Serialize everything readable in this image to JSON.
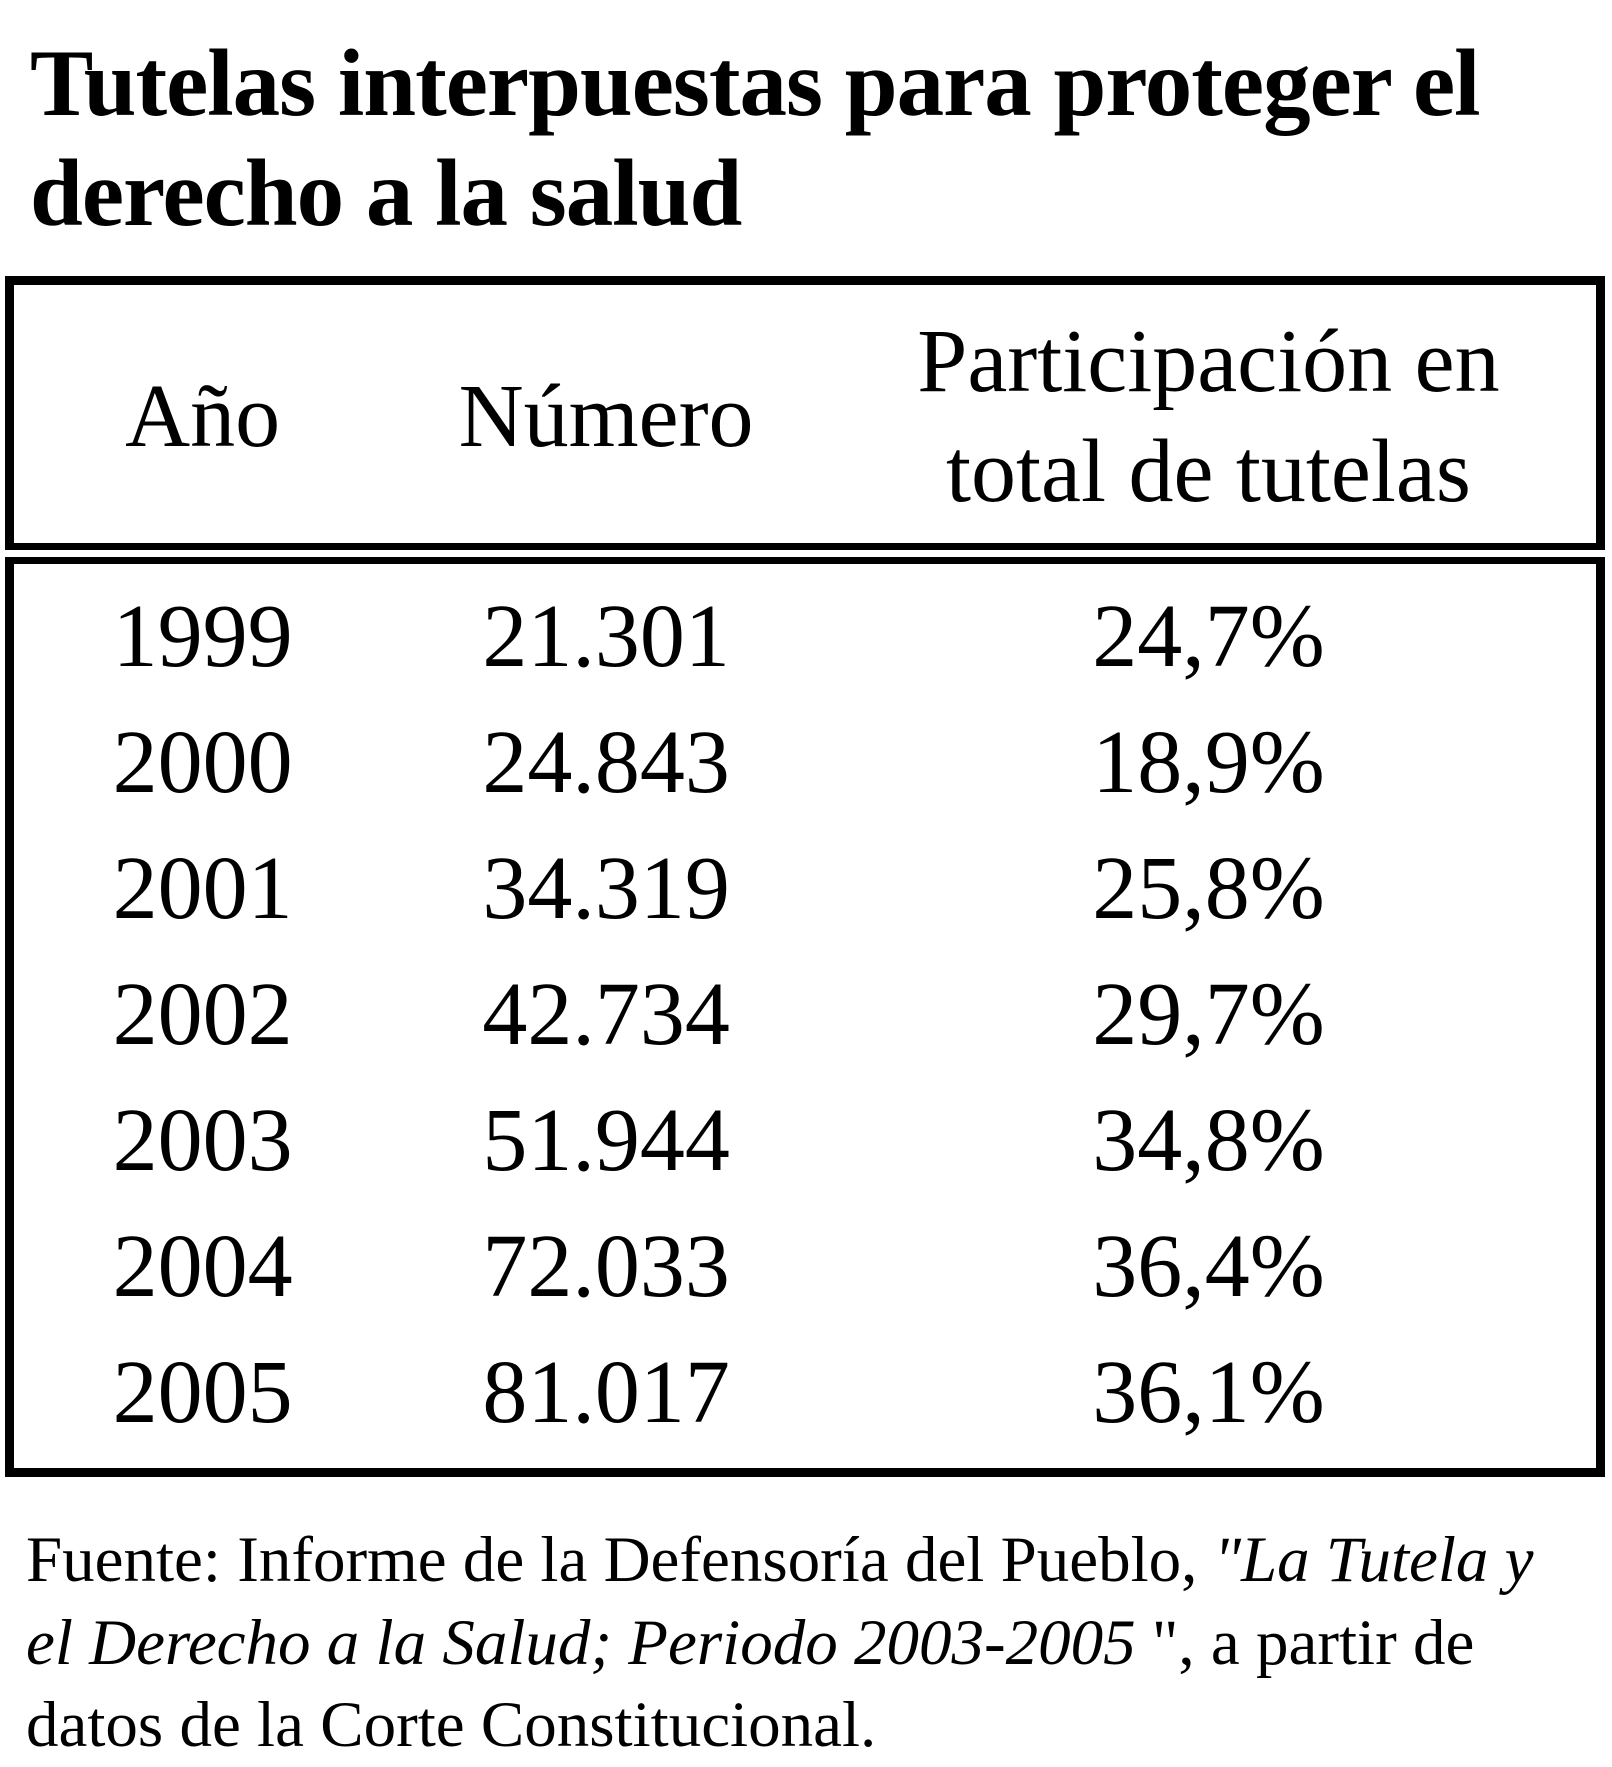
{
  "title": "Tutelas interpuestas para proteger el derecho a la salud",
  "colors": {
    "background": "#ffffff",
    "text": "#000000",
    "table_border": "#000000"
  },
  "table": {
    "columns": [
      "Año",
      "Número",
      "Participación en total de tutelas"
    ],
    "rows": [
      {
        "year": "1999",
        "number": "21.301",
        "share": "24,7%"
      },
      {
        "year": "2000",
        "number": "24.843",
        "share": "18,9%"
      },
      {
        "year": "2001",
        "number": "34.319",
        "share": "25,8%"
      },
      {
        "year": "2002",
        "number": "42.734",
        "share": "29,7%"
      },
      {
        "year": "2003",
        "number": "51.944",
        "share": "34,8%"
      },
      {
        "year": "2004",
        "number": "72.033",
        "share": "36,4%"
      },
      {
        "year": "2005",
        "number": "81.017",
        "share": "36,1%"
      }
    ]
  },
  "source": {
    "prefix": "Fuente: Informe de la Defensoría del Pueblo, ",
    "italic": "\"La Tutela y el Derecho a la Salud; Periodo 2003-2005",
    "suffix": " \", a partir de datos de la Corte Constitucional."
  },
  "chart_data": {
    "type": "table",
    "title": "Tutelas interpuestas para proteger el derecho a la salud",
    "columns": [
      "Año",
      "Número",
      "Participación en total de tutelas"
    ],
    "rows": [
      [
        "1999",
        "21.301",
        "24,7%"
      ],
      [
        "2000",
        "24.843",
        "18,9%"
      ],
      [
        "2001",
        "34.319",
        "25,8%"
      ],
      [
        "2002",
        "42.734",
        "29,7%"
      ],
      [
        "2003",
        "51.944",
        "34,8%"
      ],
      [
        "2004",
        "72.033",
        "36,4%"
      ],
      [
        "2005",
        "81.017",
        "36,1%"
      ]
    ],
    "years": [
      1999,
      2000,
      2001,
      2002,
      2003,
      2004,
      2005
    ],
    "numero_values": [
      21301,
      24843,
      34319,
      42734,
      51944,
      72033,
      81017
    ],
    "participacion_pct": [
      24.7,
      18.9,
      25.8,
      29.7,
      34.8,
      36.4,
      36.1
    ],
    "source_note": "Fuente: Informe de la Defensoría del Pueblo, \"La Tutela y el Derecho a la Salud; Periodo 2003-2005\", a partir de datos de la Corte Constitucional."
  }
}
